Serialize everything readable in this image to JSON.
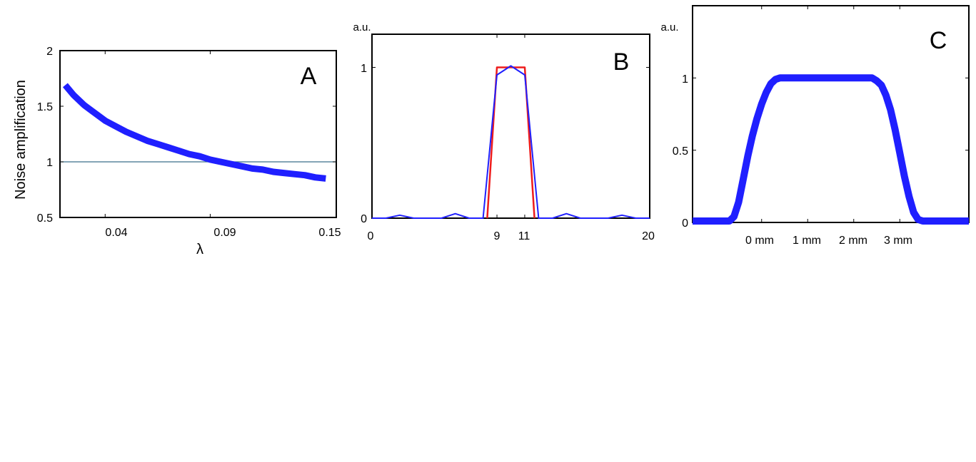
{
  "colors": {
    "blue": "#1f1fff",
    "red": "#ee1c1c",
    "line": "#3a6f8a"
  },
  "chart_data": [
    {
      "panel": "A",
      "type": "line",
      "letter": "A",
      "xlabel": "λ",
      "ylabel": "Noise amplification",
      "xlim": [
        0.0185,
        0.15
      ],
      "ylim": [
        0.5,
        2
      ],
      "xticks": [
        0.04,
        0.09,
        0.15
      ],
      "xtick_labels": [
        "0.04",
        "0.09",
        "0.15"
      ],
      "yticks": [
        0.5,
        1,
        1.5,
        2
      ],
      "ytick_labels": [
        "0.5",
        "1",
        "1.5",
        "2"
      ],
      "reference_line_y": 1,
      "series": [
        {
          "color": "#1f1fff",
          "x": [
            0.021,
            0.025,
            0.03,
            0.035,
            0.04,
            0.045,
            0.05,
            0.055,
            0.06,
            0.065,
            0.07,
            0.075,
            0.08,
            0.085,
            0.09,
            0.095,
            0.1,
            0.105,
            0.11,
            0.115,
            0.12,
            0.125,
            0.13,
            0.135,
            0.14,
            0.145
          ],
          "y": [
            1.69,
            1.6,
            1.51,
            1.44,
            1.37,
            1.32,
            1.27,
            1.23,
            1.19,
            1.16,
            1.13,
            1.1,
            1.07,
            1.05,
            1.02,
            1.0,
            0.98,
            0.96,
            0.94,
            0.93,
            0.91,
            0.9,
            0.89,
            0.88,
            0.86,
            0.85
          ]
        }
      ]
    },
    {
      "panel": "B",
      "type": "line",
      "letter": "B",
      "unit": "a.u.",
      "xlim": [
        0,
        20
      ],
      "ylim": [
        0,
        1.22
      ],
      "xticks": [
        0,
        9,
        11,
        20
      ],
      "xtick_labels": [
        "0",
        "9",
        "11",
        "20"
      ],
      "yticks": [
        0,
        1
      ],
      "ytick_labels": [
        "0",
        "1"
      ],
      "series": [
        {
          "color": "#ee1c1c",
          "x": [
            8.3,
            9,
            11,
            11.7
          ],
          "y": [
            0,
            1,
            1,
            0
          ]
        },
        {
          "color": "#1f1fff",
          "x": [
            0,
            1,
            2,
            3,
            4,
            5,
            6,
            7,
            8,
            9,
            10,
            11,
            12,
            13,
            14,
            15,
            16,
            17,
            18,
            19,
            20
          ],
          "y": [
            0.0,
            0.0,
            0.02,
            0.0,
            0.0,
            0.0,
            0.03,
            0.0,
            0.0,
            0.95,
            1.01,
            0.95,
            0.0,
            0.0,
            0.03,
            0.0,
            0.0,
            0.0,
            0.02,
            0.0,
            0.0
          ]
        }
      ]
    },
    {
      "panel": "C",
      "type": "line",
      "letter": "C",
      "unit": "a.u.",
      "xlim": [
        -1.5,
        4.5
      ],
      "ylim": [
        0,
        1.5
      ],
      "xticks": [
        0,
        1,
        2,
        3
      ],
      "xtick_labels": [
        "0 mm",
        "1 mm",
        "2 mm",
        "3 mm"
      ],
      "yticks": [
        0,
        0.5,
        1
      ],
      "ytick_labels": [
        "0",
        "0.5",
        "1"
      ],
      "series": [
        {
          "color": "#1f1fff",
          "x": [
            -1.5,
            -0.7,
            -0.6,
            -0.5,
            -0.4,
            -0.3,
            -0.2,
            -0.1,
            0.0,
            0.1,
            0.2,
            0.3,
            0.4,
            0.5,
            0.6,
            0.7,
            0.85,
            1.0,
            1.25,
            1.5,
            1.75,
            2.0,
            2.25,
            2.4,
            2.5,
            2.6,
            2.7,
            2.8,
            2.9,
            3.0,
            3.1,
            3.2,
            3.3,
            3.4,
            3.5,
            3.6,
            3.7,
            4.5
          ],
          "y": [
            0.01,
            0.01,
            0.04,
            0.14,
            0.3,
            0.46,
            0.6,
            0.72,
            0.82,
            0.9,
            0.96,
            0.99,
            1.0,
            1.0,
            1.0,
            1.0,
            1.0,
            1.0,
            1.0,
            1.0,
            1.0,
            1.0,
            1.0,
            1.0,
            0.98,
            0.95,
            0.88,
            0.78,
            0.64,
            0.48,
            0.32,
            0.18,
            0.07,
            0.02,
            0.01,
            0.01,
            0.01,
            0.01
          ]
        }
      ]
    }
  ]
}
